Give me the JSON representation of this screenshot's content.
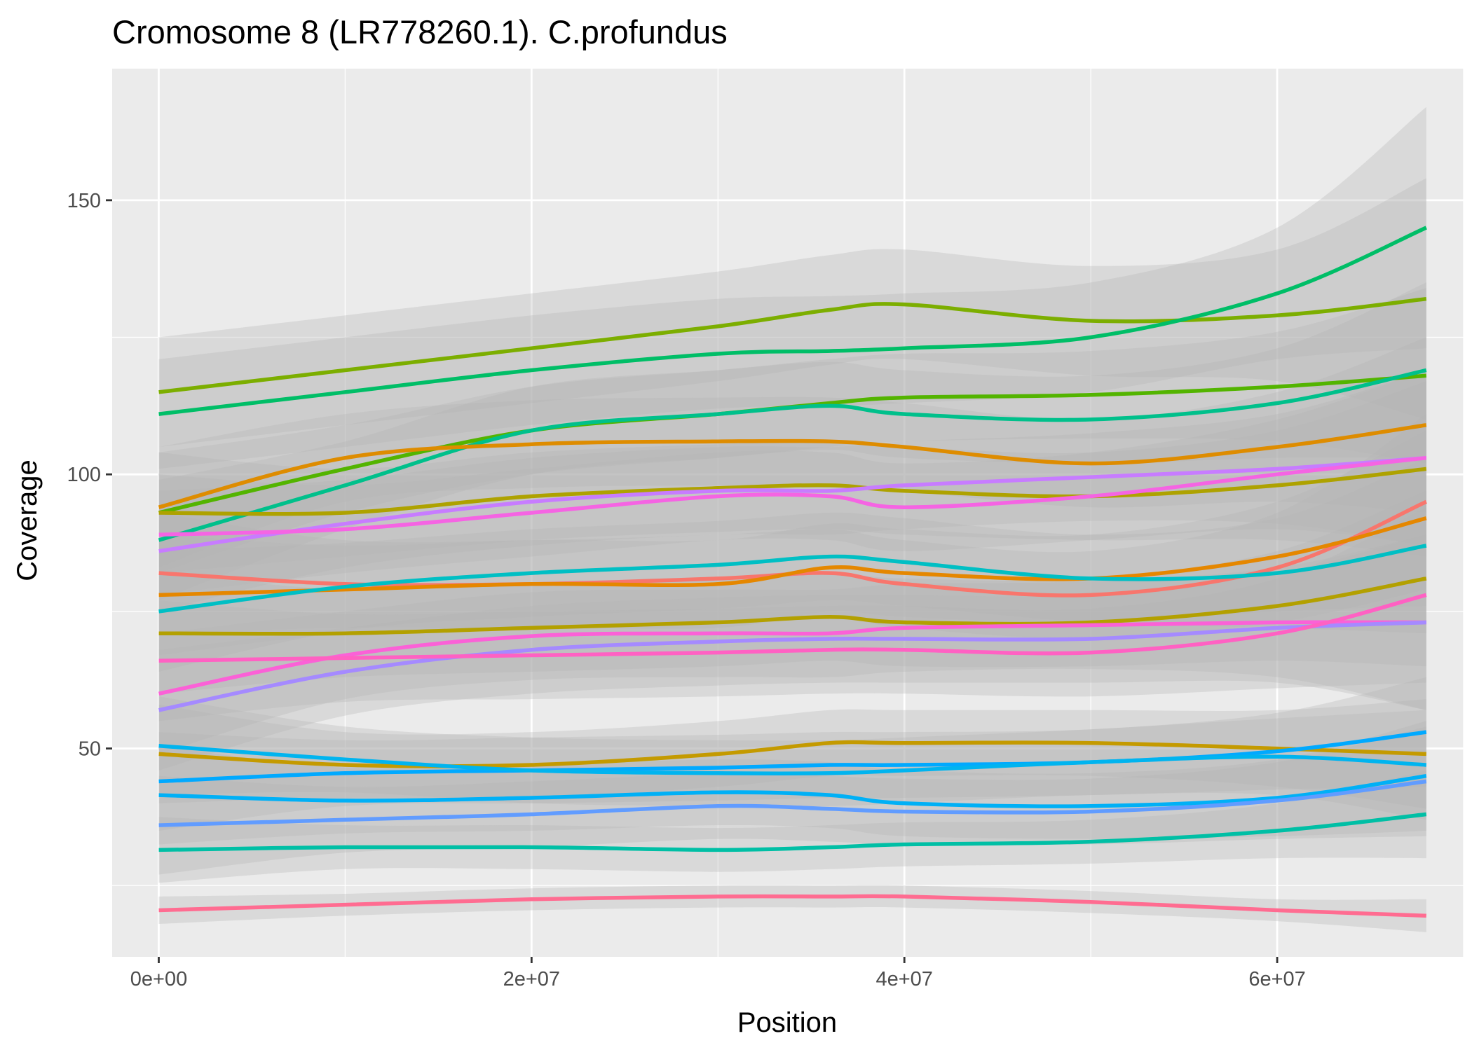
{
  "chart_data": {
    "type": "line",
    "title": "Cromosome 8 (LR778260.1). C.profundus",
    "xlabel": "Position",
    "ylabel": "Coverage",
    "xlim": [
      -2500000,
      70000000
    ],
    "ylim": [
      12,
      174
    ],
    "x_ticks": [
      0,
      20000000,
      40000000,
      60000000
    ],
    "x_tick_labels": [
      "0e+00",
      "2e+07",
      "4e+07",
      "6e+07"
    ],
    "y_ticks": [
      50,
      100,
      150
    ],
    "y_tick_labels": [
      "50",
      "100",
      "150"
    ],
    "grid": true,
    "legend": "none",
    "background": "#ebebeb",
    "band_color": "#b3b3b3",
    "x": [
      0,
      10000000,
      20000000,
      30000000,
      36000000,
      40000000,
      50000000,
      60000000,
      68000000
    ],
    "series": [
      {
        "color": "#7cae00",
        "values": [
          115,
          119,
          123,
          127,
          130,
          131,
          128,
          129,
          132
        ],
        "band": [
          10,
          10,
          10,
          10,
          10,
          10,
          10,
          12,
          22
        ]
      },
      {
        "color": "#00be67",
        "values": [
          111,
          115,
          119,
          122,
          122.5,
          123,
          125,
          133,
          145
        ],
        "band": [
          10,
          10,
          10,
          10,
          10,
          10,
          10,
          12,
          22
        ]
      },
      {
        "color": "#53b400",
        "values": [
          93,
          101,
          108,
          111,
          113,
          114,
          114.5,
          116,
          118
        ],
        "band": [
          11,
          8,
          8,
          8,
          8,
          8,
          8,
          10,
          16
        ]
      },
      {
        "color": "#00c08b",
        "values": [
          88,
          98,
          108,
          111,
          112.5,
          111,
          110,
          113,
          119
        ],
        "band": [
          11,
          8,
          8,
          8,
          8,
          8,
          8,
          10,
          16
        ]
      },
      {
        "color": "#de8c00",
        "values": [
          94,
          103,
          105.5,
          106,
          106,
          105,
          102,
          105,
          109
        ],
        "band": [
          11,
          8,
          8,
          8,
          8,
          8,
          8,
          10,
          16
        ]
      },
      {
        "color": "#aea200",
        "values": [
          93,
          93,
          96,
          97.5,
          98,
          97,
          96,
          98,
          101
        ],
        "band": [
          11,
          8,
          8,
          8,
          8,
          8,
          8,
          10,
          16
        ]
      },
      {
        "color": "#c77cff",
        "values": [
          86,
          91,
          95,
          97,
          97,
          98,
          99.5,
          101,
          103
        ],
        "band": [
          11,
          8,
          8,
          8,
          8,
          8,
          8,
          10,
          16
        ]
      },
      {
        "color": "#f564e3",
        "values": [
          89,
          90,
          93,
          96,
          96,
          94,
          96,
          100,
          103
        ],
        "band": [
          11,
          8,
          8,
          8,
          8,
          8,
          8,
          10,
          16
        ]
      },
      {
        "color": "#f8766d",
        "values": [
          82,
          80,
          80,
          81,
          82,
          80,
          78,
          83,
          95
        ],
        "band": [
          11,
          8,
          8,
          8,
          8,
          8,
          8,
          10,
          16
        ]
      },
      {
        "color": "#e58700",
        "values": [
          78,
          79,
          80,
          80,
          83,
          82,
          81,
          85,
          92
        ],
        "band": [
          11,
          8,
          8,
          8,
          8,
          8,
          8,
          10,
          16
        ]
      },
      {
        "color": "#00bfc4",
        "values": [
          75,
          79.5,
          82,
          83.5,
          85,
          84,
          81,
          82,
          87
        ],
        "band": [
          11,
          8,
          8,
          8,
          8,
          8,
          8,
          10,
          16
        ]
      },
      {
        "color": "#b3a000",
        "values": [
          71,
          71,
          72,
          73,
          74,
          73,
          73,
          76,
          81
        ],
        "band": [
          11,
          8,
          8,
          8,
          8,
          8,
          8,
          10,
          16
        ]
      },
      {
        "color": "#fb61d7",
        "values": [
          60,
          67,
          70.5,
          71,
          71,
          72,
          72.5,
          73,
          73
        ],
        "band": [
          11,
          8,
          8,
          8,
          8,
          8,
          8,
          10,
          16
        ]
      },
      {
        "color": "#a58aff",
        "values": [
          57,
          64,
          68,
          69.5,
          70,
          70,
          70,
          72,
          73
        ],
        "band": [
          11,
          8,
          8,
          8,
          8,
          8,
          8,
          10,
          16
        ]
      },
      {
        "color": "#ff61c3",
        "values": [
          66,
          66.5,
          67,
          67.5,
          68,
          68,
          67.5,
          71,
          78
        ],
        "band": [
          11,
          8,
          8,
          8,
          8,
          8,
          8,
          10,
          16
        ]
      },
      {
        "color": "#c49a00",
        "values": [
          49,
          47,
          47,
          49,
          51,
          51,
          51,
          50,
          49
        ],
        "band": [
          9,
          6,
          6,
          6,
          6,
          6,
          6,
          7,
          10
        ]
      },
      {
        "color": "#00a9ff",
        "values": [
          44,
          45.5,
          46,
          46.5,
          47,
          47,
          47.5,
          49.5,
          53
        ],
        "band": [
          9,
          6,
          6,
          6,
          6,
          6,
          6,
          7,
          10
        ]
      },
      {
        "color": "#00b4ef",
        "values": [
          50.5,
          48,
          46,
          45.5,
          45.5,
          46,
          47.5,
          48.5,
          47
        ],
        "band": [
          9,
          6,
          6,
          6,
          6,
          6,
          6,
          7,
          10
        ]
      },
      {
        "color": "#00b0f6",
        "values": [
          41.5,
          40.5,
          41,
          42,
          41.5,
          40,
          39.5,
          41,
          45
        ],
        "band": [
          9,
          6,
          6,
          6,
          6,
          6,
          6,
          7,
          10
        ]
      },
      {
        "color": "#619cff",
        "values": [
          36,
          37,
          38,
          39.5,
          39,
          38.5,
          38.5,
          40.5,
          44
        ],
        "band": [
          9,
          6,
          6,
          6,
          6,
          6,
          6,
          7,
          10
        ]
      },
      {
        "color": "#00bfa5",
        "values": [
          31.5,
          32,
          32,
          31.5,
          32,
          32.5,
          33,
          35,
          38
        ],
        "band": [
          6,
          4,
          4,
          4,
          4,
          4,
          4,
          5,
          8
        ]
      },
      {
        "color": "#ff6c91",
        "values": [
          20.5,
          21.5,
          22.5,
          23,
          23,
          23,
          22,
          20.5,
          19.5
        ],
        "band": [
          2.5,
          2,
          2,
          2,
          2,
          2,
          2,
          2,
          3
        ]
      }
    ]
  }
}
